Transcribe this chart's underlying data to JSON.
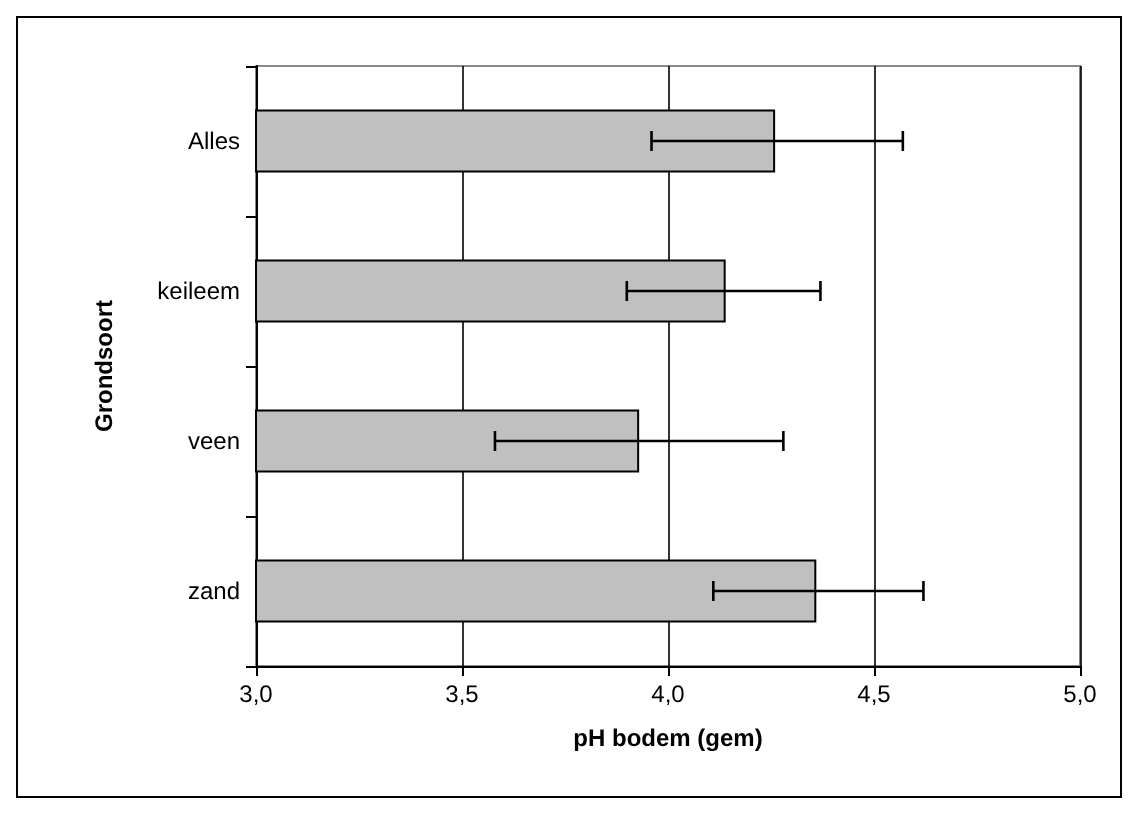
{
  "chart_data": {
    "type": "bar",
    "orientation": "horizontal",
    "xlabel": "pH bodem (gem)",
    "ylabel": "Grondsoort",
    "categories": [
      "Alles",
      "keileem",
      "veen",
      "zand"
    ],
    "values": [
      4.26,
      4.14,
      3.93,
      4.36
    ],
    "color": "#c0c0c0",
    "errors": [
      [
        3.96,
        4.57
      ],
      [
        3.9,
        4.37
      ],
      [
        3.58,
        4.28
      ],
      [
        4.11,
        4.62
      ]
    ],
    "xlim": [
      3,
      5
    ],
    "xticks": [
      {
        "value": 3,
        "label": "3,0"
      },
      {
        "value": 3.5,
        "label": "3,5"
      },
      {
        "value": 4,
        "label": "4,0"
      },
      {
        "value": 4.5,
        "label": "4,5"
      },
      {
        "value": 5,
        "label": "5,0"
      }
    ],
    "grid": "x"
  }
}
